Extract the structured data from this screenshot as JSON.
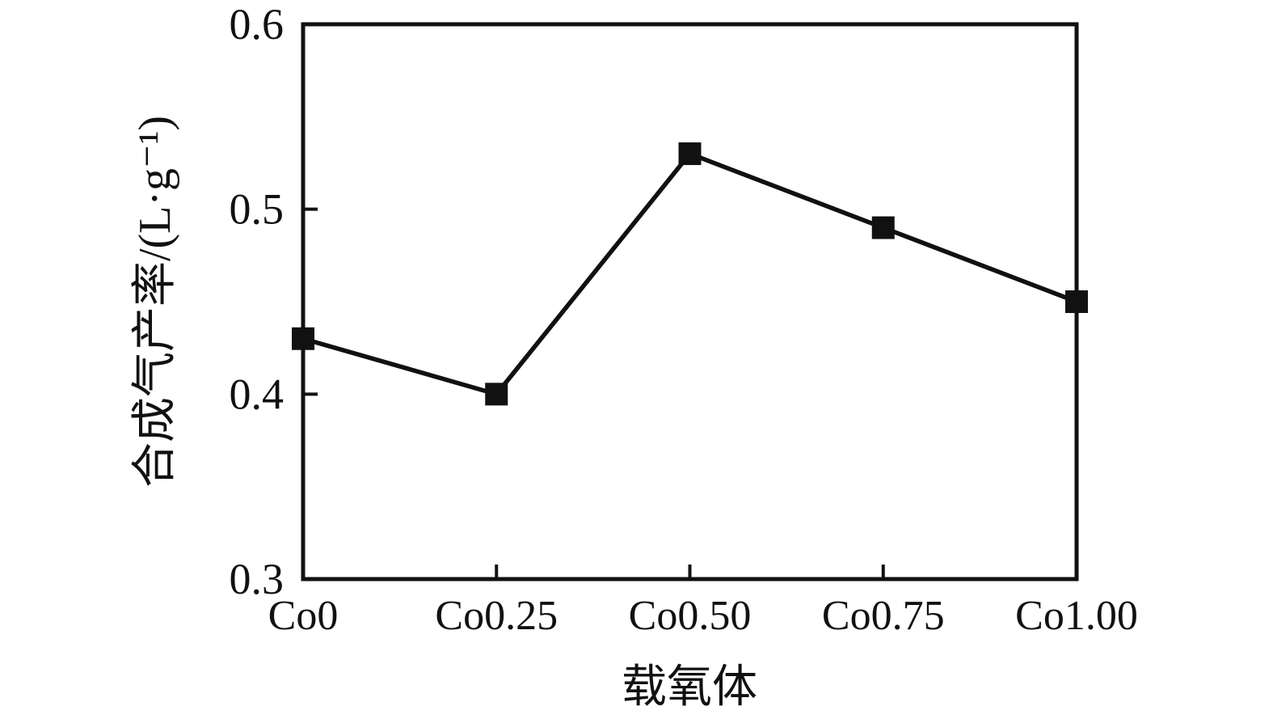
{
  "chart_data": {
    "type": "line",
    "categories": [
      "Co0",
      "Co0.25",
      "Co0.50",
      "Co0.75",
      "Co1.00"
    ],
    "values": [
      0.43,
      0.4,
      0.53,
      0.49,
      0.45
    ],
    "title": "",
    "xlabel": "载氧体",
    "ylabel": "合成气产率/(L·g⁻¹)",
    "ylim": [
      0.3,
      0.6
    ],
    "yticks": [
      0.3,
      0.4,
      0.5,
      0.6
    ],
    "ytick_labels": [
      "0.3",
      "0.4",
      "0.5",
      "0.6"
    ],
    "grid": false,
    "legend_position": "none",
    "marker": "square",
    "line_color": "#111111",
    "marker_color": "#111111",
    "frame_color": "#111111",
    "background": "#ffffff"
  }
}
